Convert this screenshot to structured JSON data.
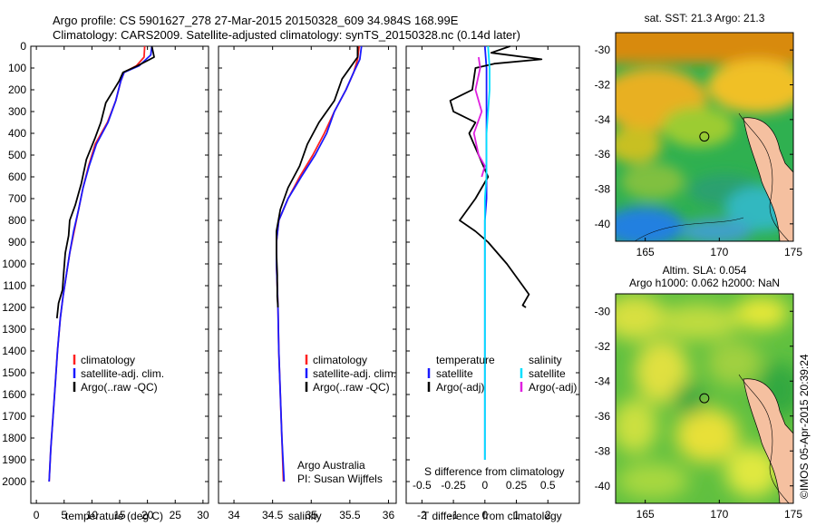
{
  "header": {
    "line1": "Argo profile: CS 5901627_278 27-Mar-2015 20150328_609 34.984S 168.99E",
    "line2": "Climatology: CARS2009. Satellite-adjusted climatology: synTS_20150328.nc (0.14d later)"
  },
  "colors": {
    "climatology": "#ff2020",
    "satellite": "#1a1aff",
    "argo": "#000000",
    "sat_salinity": "#00e0ff",
    "argo_adj_salinity": "#e020e0"
  },
  "credits": {
    "org": "Argo Australia",
    "pi": "PI: Susan Wijffels",
    "stamp": "©IMOS 05-Apr-2015 20:39:24"
  },
  "chart_data": [
    {
      "type": "line",
      "xlabel": "temperature (deg C)",
      "xlim": [
        -1,
        31
      ],
      "ylim": [
        2100,
        0
      ],
      "xticks": [
        0,
        5,
        10,
        15,
        20,
        25,
        30
      ],
      "yticks": [
        0,
        100,
        200,
        300,
        400,
        500,
        600,
        700,
        800,
        900,
        1000,
        1100,
        1200,
        1300,
        1400,
        1500,
        1600,
        1700,
        1800,
        1900,
        2000
      ],
      "legend": [
        "climatology",
        "satellite-adj. clim.",
        "Argo(..raw -QC)"
      ],
      "series": [
        {
          "name": "climatology",
          "color": "#ff2020",
          "points": [
            [
              19.5,
              0
            ],
            [
              19.4,
              50
            ],
            [
              18.0,
              90
            ],
            [
              15.8,
              120
            ],
            [
              15.2,
              160
            ],
            [
              14.3,
              250
            ],
            [
              12.8,
              350
            ],
            [
              10.6,
              450
            ],
            [
              9.4,
              550
            ],
            [
              8.4,
              650
            ],
            [
              7.6,
              750
            ],
            [
              6.8,
              850
            ],
            [
              6.0,
              950
            ],
            [
              5.4,
              1050
            ],
            [
              4.8,
              1150
            ],
            [
              4.3,
              1250
            ],
            [
              3.8,
              1400
            ],
            [
              3.4,
              1550
            ],
            [
              3.0,
              1700
            ],
            [
              2.6,
              1850
            ],
            [
              2.3,
              2000
            ]
          ]
        },
        {
          "name": "satellite-adj. clim.",
          "color": "#1a1aff",
          "points": [
            [
              20.8,
              0
            ],
            [
              20.6,
              40
            ],
            [
              18.5,
              90
            ],
            [
              15.8,
              120
            ],
            [
              15.2,
              160
            ],
            [
              14.3,
              250
            ],
            [
              12.9,
              350
            ],
            [
              10.8,
              450
            ],
            [
              9.5,
              550
            ],
            [
              8.4,
              650
            ],
            [
              7.6,
              750
            ],
            [
              6.7,
              850
            ],
            [
              6.0,
              950
            ],
            [
              5.4,
              1050
            ],
            [
              4.8,
              1150
            ],
            [
              4.3,
              1250
            ],
            [
              3.8,
              1400
            ],
            [
              3.4,
              1550
            ],
            [
              3.0,
              1700
            ],
            [
              2.6,
              1850
            ],
            [
              2.3,
              2000
            ]
          ]
        },
        {
          "name": "Argo(..raw -QC)",
          "color": "#000000",
          "points": [
            [
              20.8,
              0
            ],
            [
              21.2,
              50
            ],
            [
              18.2,
              90
            ],
            [
              15.6,
              120
            ],
            [
              14.9,
              160
            ],
            [
              12.5,
              260
            ],
            [
              11.6,
              350
            ],
            [
              10.6,
              420
            ],
            [
              9.0,
              520
            ],
            [
              8.1,
              630
            ],
            [
              7.0,
              730
            ],
            [
              6.0,
              800
            ],
            [
              5.8,
              870
            ],
            [
              5.2,
              950
            ],
            [
              4.9,
              1050
            ],
            [
              4.7,
              1120
            ],
            [
              4.0,
              1180
            ],
            [
              3.7,
              1250
            ]
          ]
        }
      ]
    },
    {
      "type": "line",
      "xlabel": "salinity",
      "xlim": [
        33.8,
        36.1
      ],
      "ylim": [
        2100,
        0
      ],
      "xticks": [
        34,
        34.5,
        35,
        35.5,
        36
      ],
      "legend": [
        "climatology",
        "satellite-adj. clim.",
        "Argo(..raw -QC)"
      ],
      "series": [
        {
          "name": "climatology",
          "color": "#ff2020",
          "points": [
            [
              35.62,
              0
            ],
            [
              35.6,
              60
            ],
            [
              35.55,
              120
            ],
            [
              35.45,
              200
            ],
            [
              35.3,
              300
            ],
            [
              35.17,
              400
            ],
            [
              35.02,
              500
            ],
            [
              34.85,
              600
            ],
            [
              34.7,
              700
            ],
            [
              34.58,
              800
            ],
            [
              34.55,
              900
            ],
            [
              34.55,
              1000
            ],
            [
              34.56,
              1100
            ],
            [
              34.57,
              1200
            ],
            [
              34.58,
              1400
            ],
            [
              34.6,
              1600
            ],
            [
              34.62,
              1800
            ],
            [
              34.64,
              2000
            ]
          ]
        },
        {
          "name": "satellite-adj. clim.",
          "color": "#1a1aff",
          "points": [
            [
              35.65,
              0
            ],
            [
              35.63,
              60
            ],
            [
              35.55,
              120
            ],
            [
              35.45,
              200
            ],
            [
              35.3,
              300
            ],
            [
              35.2,
              400
            ],
            [
              35.05,
              500
            ],
            [
              34.87,
              600
            ],
            [
              34.7,
              700
            ],
            [
              34.58,
              800
            ],
            [
              34.55,
              900
            ],
            [
              34.55,
              1000
            ],
            [
              34.56,
              1100
            ],
            [
              34.57,
              1200
            ],
            [
              34.58,
              1400
            ],
            [
              34.6,
              1600
            ],
            [
              34.62,
              1800
            ],
            [
              34.65,
              2000
            ]
          ]
        },
        {
          "name": "Argo(..raw -QC)",
          "color": "#000000",
          "points": [
            [
              35.6,
              0
            ],
            [
              35.6,
              50
            ],
            [
              35.4,
              150
            ],
            [
              35.3,
              250
            ],
            [
              35.1,
              350
            ],
            [
              34.95,
              450
            ],
            [
              34.85,
              550
            ],
            [
              34.7,
              650
            ],
            [
              34.6,
              750
            ],
            [
              34.55,
              850
            ],
            [
              34.55,
              950
            ],
            [
              34.56,
              1050
            ],
            [
              34.56,
              1150
            ],
            [
              34.57,
              1200
            ]
          ]
        }
      ]
    },
    {
      "type": "line",
      "xlabel": "T difference from climatology",
      "top_label": "S difference from climatology",
      "xlim": [
        -2.5,
        3.0
      ],
      "ylim": [
        2100,
        0
      ],
      "xticks": [
        -2,
        -1,
        0,
        1,
        2
      ],
      "xticks_top": [
        -0.5,
        -0.25,
        0,
        0.25,
        0.5
      ],
      "legend_headers": [
        "temperature",
        "salinity"
      ],
      "legend": [
        "satellite",
        "Argo(-adj)",
        "satellite",
        "Argo(-adj)"
      ],
      "series": [
        {
          "name": "satellite",
          "color": "#1a1aff",
          "points": [
            [
              0.0,
              0
            ],
            [
              0.05,
              100
            ],
            [
              0.05,
              200
            ],
            [
              0.05,
              300
            ],
            [
              0.05,
              400
            ],
            [
              0.05,
              500
            ],
            [
              0.05,
              600
            ],
            [
              0.05,
              700
            ],
            [
              0.0,
              800
            ],
            [
              0.0,
              900
            ],
            [
              0.0,
              1000
            ],
            [
              0.0,
              1200
            ],
            [
              0.0,
              1400
            ],
            [
              0.0,
              1600
            ],
            [
              0.0,
              1800
            ],
            [
              0.0,
              1900
            ]
          ]
        },
        {
          "name": "Argo(-adj)",
          "color": "#000000",
          "points": [
            [
              0.8,
              0
            ],
            [
              0.2,
              30
            ],
            [
              1.8,
              60
            ],
            [
              0.3,
              80
            ],
            [
              -0.3,
              100
            ],
            [
              -0.4,
              200
            ],
            [
              -1.1,
              250
            ],
            [
              -1.0,
              300
            ],
            [
              -0.3,
              350
            ],
            [
              -0.5,
              400
            ],
            [
              -0.2,
              500
            ],
            [
              0.1,
              600
            ],
            [
              -0.3,
              700
            ],
            [
              -0.8,
              800
            ],
            [
              -0.3,
              850
            ],
            [
              0.1,
              900
            ],
            [
              0.7,
              1000
            ],
            [
              1.2,
              1100
            ],
            [
              1.4,
              1140
            ],
            [
              1.2,
              1190
            ],
            [
              1.3,
              1200
            ]
          ]
        },
        {
          "name": "satellite",
          "color": "#00e0ff",
          "points": [
            [
              0.1,
              0
            ],
            [
              0.15,
              100
            ],
            [
              0.15,
              200
            ],
            [
              0.1,
              300
            ],
            [
              0.05,
              400
            ],
            [
              0.05,
              500
            ],
            [
              0.05,
              600
            ],
            [
              0.0,
              700
            ],
            [
              0.0,
              800
            ],
            [
              0.0,
              1000
            ],
            [
              0.0,
              1200
            ],
            [
              0.0,
              1400
            ],
            [
              0.0,
              1600
            ],
            [
              0.0,
              1800
            ],
            [
              0.0,
              1900
            ]
          ]
        },
        {
          "name": "Argo(-adj)",
          "color": "#e020e0",
          "points": [
            [
              -0.2,
              50
            ],
            [
              -0.15,
              100
            ],
            [
              -0.3,
              200
            ],
            [
              -0.1,
              300
            ],
            [
              -0.35,
              400
            ],
            [
              -0.2,
              500
            ],
            [
              0.0,
              550
            ],
            [
              -0.1,
              600
            ]
          ]
        }
      ]
    },
    {
      "type": "heatmap",
      "title": "sat. SST: 21.3 Argo: 21.3",
      "xlim": [
        163,
        175
      ],
      "ylim": [
        -41,
        -29
      ],
      "xticks": [
        165,
        170,
        175
      ],
      "yticks": [
        -30,
        -32,
        -34,
        -36,
        -38,
        -40
      ],
      "marker": [
        168.99,
        -34.98
      ]
    },
    {
      "type": "heatmap",
      "title": "Altim. SLA: 0.054",
      "subtitle": "Argo h1000: 0.062 h2000: NaN",
      "xlim": [
        163,
        175
      ],
      "ylim": [
        -41,
        -29
      ],
      "xticks": [
        165,
        170,
        175
      ],
      "yticks": [
        -30,
        -32,
        -34,
        -36,
        -38,
        -40
      ],
      "marker": [
        168.99,
        -34.98
      ]
    }
  ]
}
